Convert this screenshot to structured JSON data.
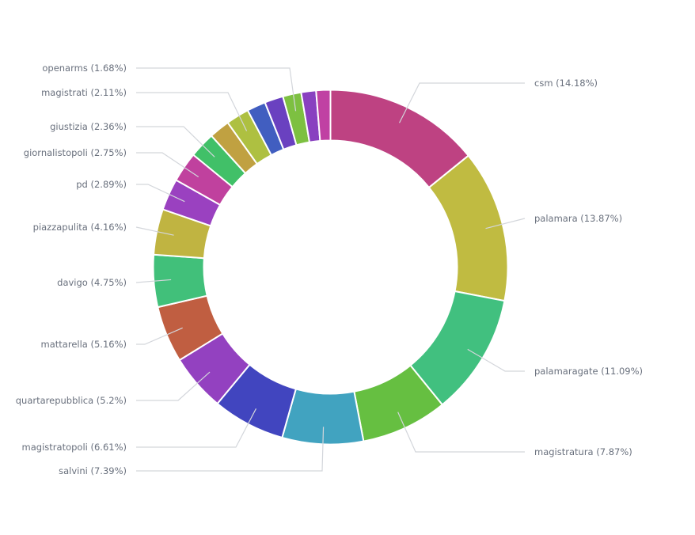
{
  "chart_data": {
    "type": "pie",
    "variant": "donut",
    "title": "",
    "start_angle": "12 o'clock",
    "direction": "clockwise",
    "slices": [
      {
        "label": "csm",
        "value": 14.18,
        "display": "csm (14.18%)",
        "color": "#be4282",
        "labeled": true
      },
      {
        "label": "palamara",
        "value": 13.87,
        "display": "palamara (13.87%)",
        "color": "#c0bb41",
        "labeled": true
      },
      {
        "label": "palamaragate",
        "value": 11.09,
        "display": "palamaragate (11.09%)",
        "color": "#41c07f",
        "labeled": true
      },
      {
        "label": "magistratura",
        "value": 7.87,
        "display": "magistratura (7.87%)",
        "color": "#66bf41",
        "labeled": true
      },
      {
        "label": "salvini",
        "value": 7.39,
        "display": "salvini (7.39%)",
        "color": "#41a3c0",
        "labeled": true
      },
      {
        "label": "magistratopoli",
        "value": 6.61,
        "display": "magistratopoli (6.61%)",
        "color": "#4145bf",
        "labeled": true
      },
      {
        "label": "quartarepubblica",
        "value": 5.2,
        "display": "quartarepubblica (5.2%)",
        "color": "#9341c0",
        "labeled": true
      },
      {
        "label": "mattarella",
        "value": 5.16,
        "display": "mattarella (5.16%)",
        "color": "#c05e41",
        "labeled": true
      },
      {
        "label": "davigo",
        "value": 4.75,
        "display": "davigo (4.75%)",
        "color": "#41c07a",
        "labeled": true
      },
      {
        "label": "piazzapulita",
        "value": 4.16,
        "display": "piazzapulita (4.16%)",
        "color": "#c0b441",
        "labeled": true
      },
      {
        "label": "pd",
        "value": 2.89,
        "display": "pd (2.89%)",
        "color": "#9a41c0",
        "labeled": true
      },
      {
        "label": "giornalistopoli",
        "value": 2.75,
        "display": "giornalistopoli (2.75%)",
        "color": "#c0419e",
        "labeled": true
      },
      {
        "label": "giustizia",
        "value": 2.36,
        "display": "giustizia (2.36%)",
        "color": "#41c068",
        "labeled": true
      },
      {
        "label": "",
        "value": 1.88,
        "display": "",
        "color": "#c0a141",
        "labeled": false
      },
      {
        "label": "magistrati",
        "value": 2.11,
        "display": "magistrati (2.11%)",
        "color": "#aec041",
        "labeled": true
      },
      {
        "label": "",
        "value": 1.7,
        "display": "",
        "color": "#415ec0",
        "labeled": false
      },
      {
        "label": "",
        "value": 1.7,
        "display": "",
        "color": "#6a41c0",
        "labeled": false
      },
      {
        "label": "openarms",
        "value": 1.68,
        "display": "openarms (1.68%)",
        "color": "#7dc041",
        "labeled": true
      },
      {
        "label": "",
        "value": 1.35,
        "display": "",
        "color": "#8941c0",
        "labeled": false
      },
      {
        "label": "",
        "value": 1.3,
        "display": "",
        "color": "#c041a3",
        "labeled": false
      }
    ],
    "legend": "none",
    "label_placement": "outside-with-leader-lines"
  }
}
